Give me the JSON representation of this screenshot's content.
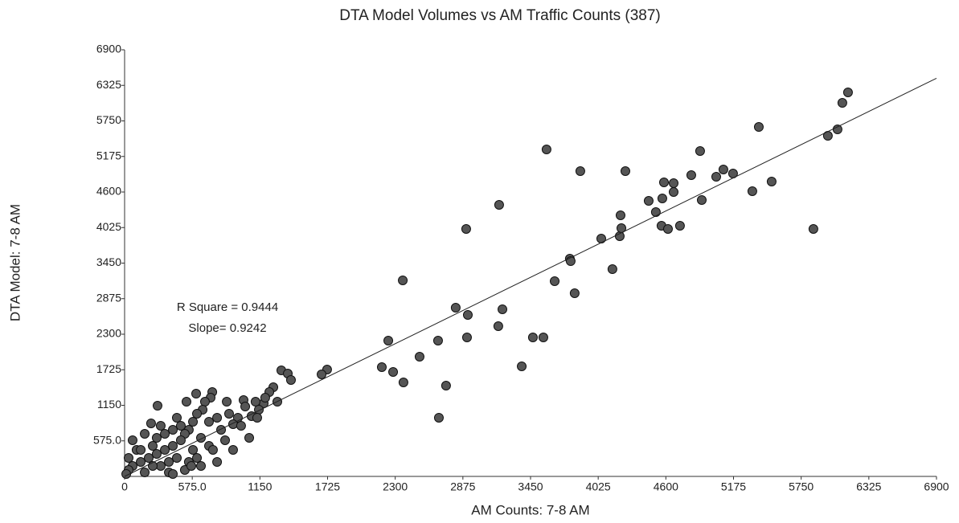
{
  "chart_data": {
    "type": "scatter",
    "title": "DTA Model Volumes vs AM Traffic Counts (387)",
    "xlabel": "AM Counts: 7-8 AM",
    "ylabel": "DTA Model: 7-8 AM",
    "annotations": [
      "R Square = 0.9444",
      "Slope= 0.9242"
    ],
    "xlim": [
      0,
      6900
    ],
    "ylim": [
      0,
      6900
    ],
    "xticks": [
      0,
      {
        "value": 575,
        "label": "575.0"
      },
      1150,
      1725,
      2300,
      2875,
      3450,
      4025,
      4600,
      5175,
      5750,
      6325,
      6900
    ],
    "yticks": [
      {
        "value": 575,
        "label": "575.0"
      },
      1150,
      1725,
      2300,
      2875,
      3450,
      4025,
      4600,
      5175,
      5750,
      6325,
      6900
    ],
    "color": "#555555",
    "trendline": {
      "x": [
        0,
        6900
      ],
      "y": [
        0,
        6440
      ]
    },
    "x": [
      1332,
      1721,
      1674,
      2241,
      2186,
      2282,
      2370,
      2364,
      2507,
      2664,
      2732,
      2671,
      2903,
      2917,
      2910,
      2814,
      3176,
      3183,
      3211,
      3375,
      3470,
      3559,
      3586,
      3655,
      3784,
      3791,
      3825,
      3873,
      4051,
      4146,
      4208,
      4215,
      4222,
      4256,
      4454,
      4515,
      4570,
      4584,
      4563,
      4618,
      4666,
      4666,
      4720,
      4816,
      4891,
      4905,
      5028,
      5089,
      5171,
      5335,
      5390,
      5499,
      5854,
      5977,
      6059,
      6100,
      6148,
      1387,
      1414,
      1264,
      1230,
      1182,
      1195,
      1113,
      1141,
      1079,
      1011,
      1025,
      963,
      922,
      820,
      786,
      717,
      745,
      731,
      683,
      663,
      615,
      581,
      546,
      512,
      478,
      410,
      342,
      273,
      205,
      137,
      68,
      34,
      14,
      280,
      225,
      410,
      444,
      608,
      526,
      868,
      990,
      1059,
      922,
      786,
      649,
      512,
      376,
      171,
      102,
      34,
      68,
      171,
      273,
      307,
      444,
      581,
      717,
      854,
      649,
      546,
      376,
      239,
      137,
      307,
      478,
      567,
      751,
      1298,
      1127,
      888,
      342,
      615,
      410,
      239
    ],
    "y": [
      1715,
      1728,
      1650,
      2196,
      1767,
      1689,
      1520,
      3171,
      1936,
      2196,
      1468,
      949,
      4002,
      2612,
      2248,
      2729,
      2430,
      4392,
      2703,
      1780,
      2248,
      2248,
      5289,
      3158,
      3521,
      3482,
      2963,
      4938,
      3846,
      3352,
      3885,
      4223,
      4015,
      4938,
      4457,
      4275,
      4496,
      4756,
      4054,
      4002,
      4600,
      4743,
      4054,
      4873,
      5263,
      4470,
      4847,
      4964,
      4899,
      4613,
      5652,
      4769,
      4002,
      5509,
      5613,
      6042,
      6211,
      1663,
      1559,
      1442,
      1364,
      1182,
      1273,
      1208,
      1079,
      975,
      1234,
      1130,
      949,
      845,
      754,
      949,
      884,
      1364,
      1273,
      1208,
      1079,
      1014,
      884,
      754,
      689,
      585,
      494,
      429,
      364,
      299,
      234,
      169,
      104,
      39,
      1143,
      858,
      754,
      949,
      1338,
      1208,
      1208,
      819,
      624,
      429,
      234,
      169,
      104,
      65,
      65,
      429,
      299,
      585,
      689,
      624,
      169,
      299,
      429,
      494,
      585,
      624,
      234,
      234,
      494,
      429,
      819,
      819,
      169,
      429,
      1208,
      949,
      1014,
      689,
      299,
      39,
      169
    ]
  }
}
